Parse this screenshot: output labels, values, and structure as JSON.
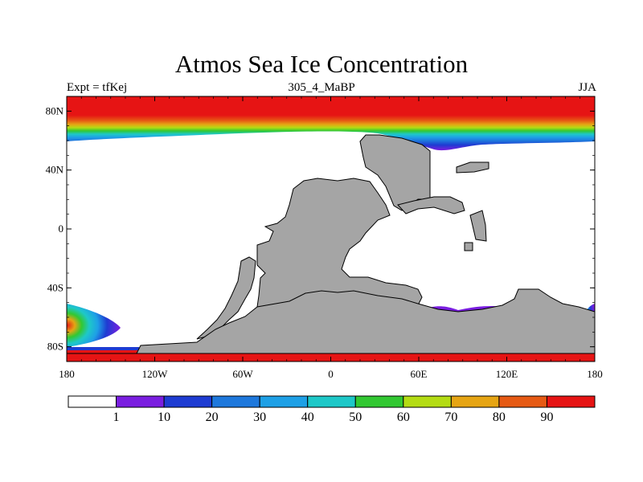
{
  "title": "Atmos Sea Ice Concentration",
  "subtitle_left": "Expt = tfKej",
  "subtitle_center": "305_4_MaBP",
  "subtitle_right": "JJA",
  "x_tick_labels": [
    "180",
    "120W",
    "60W",
    "0",
    "60E",
    "120E",
    "180"
  ],
  "y_tick_labels": [
    "80N",
    "40N",
    "0",
    "40S",
    "80S"
  ],
  "colorbar": {
    "labels": [
      "1",
      "10",
      "20",
      "30",
      "40",
      "50",
      "60",
      "70",
      "80",
      "90"
    ],
    "colors": [
      "#ffffff",
      "#7a1ee0",
      "#1e3cd2",
      "#1e78dc",
      "#1ea0e6",
      "#1ec8c8",
      "#32c832",
      "#b4dc14",
      "#e6a514",
      "#e65a14",
      "#e61414"
    ]
  },
  "colors": {
    "land": "#a5a5a5",
    "ocean": "#ffffff",
    "frame": "#000000"
  }
}
